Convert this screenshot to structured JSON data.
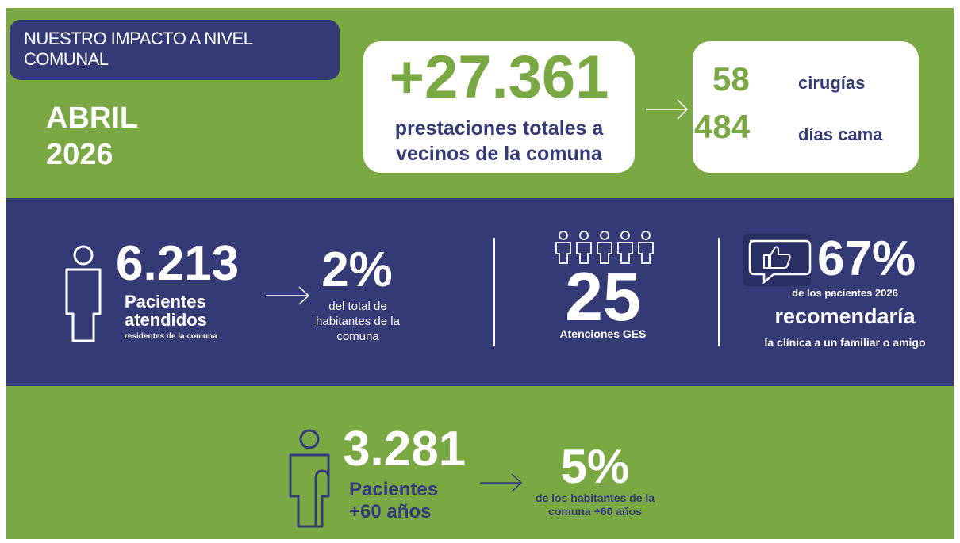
{
  "header": {
    "title": "NUESTRO IMPACTO A NIVEL COMUNAL",
    "period": "ABRIL 2026"
  },
  "totals": {
    "value": "+27.361",
    "label": "prestaciones totales a vecinos de la comuna",
    "items": [
      {
        "value": "58",
        "label": "cirugías"
      },
      {
        "value": "484",
        "label": "días cama"
      }
    ]
  },
  "patients": {
    "value": "6.213",
    "label": "Pacientes atendidos",
    "sublabel": "residentes de la comuna",
    "share": {
      "value": "2%",
      "label": "del total de habitantes de la comuna"
    }
  },
  "ges": {
    "value": "25",
    "label": "Atenciones GES"
  },
  "recommend": {
    "value": "67%",
    "line1": "de los pacientes 2026",
    "line2": "recomendaría",
    "line3": "la clínica a un familiar o amigo"
  },
  "seniors": {
    "value": "3.281",
    "label": "Pacientes +60 años",
    "share": {
      "value": "5%",
      "label": "de los habitantes de la comuna +60 años"
    }
  }
}
